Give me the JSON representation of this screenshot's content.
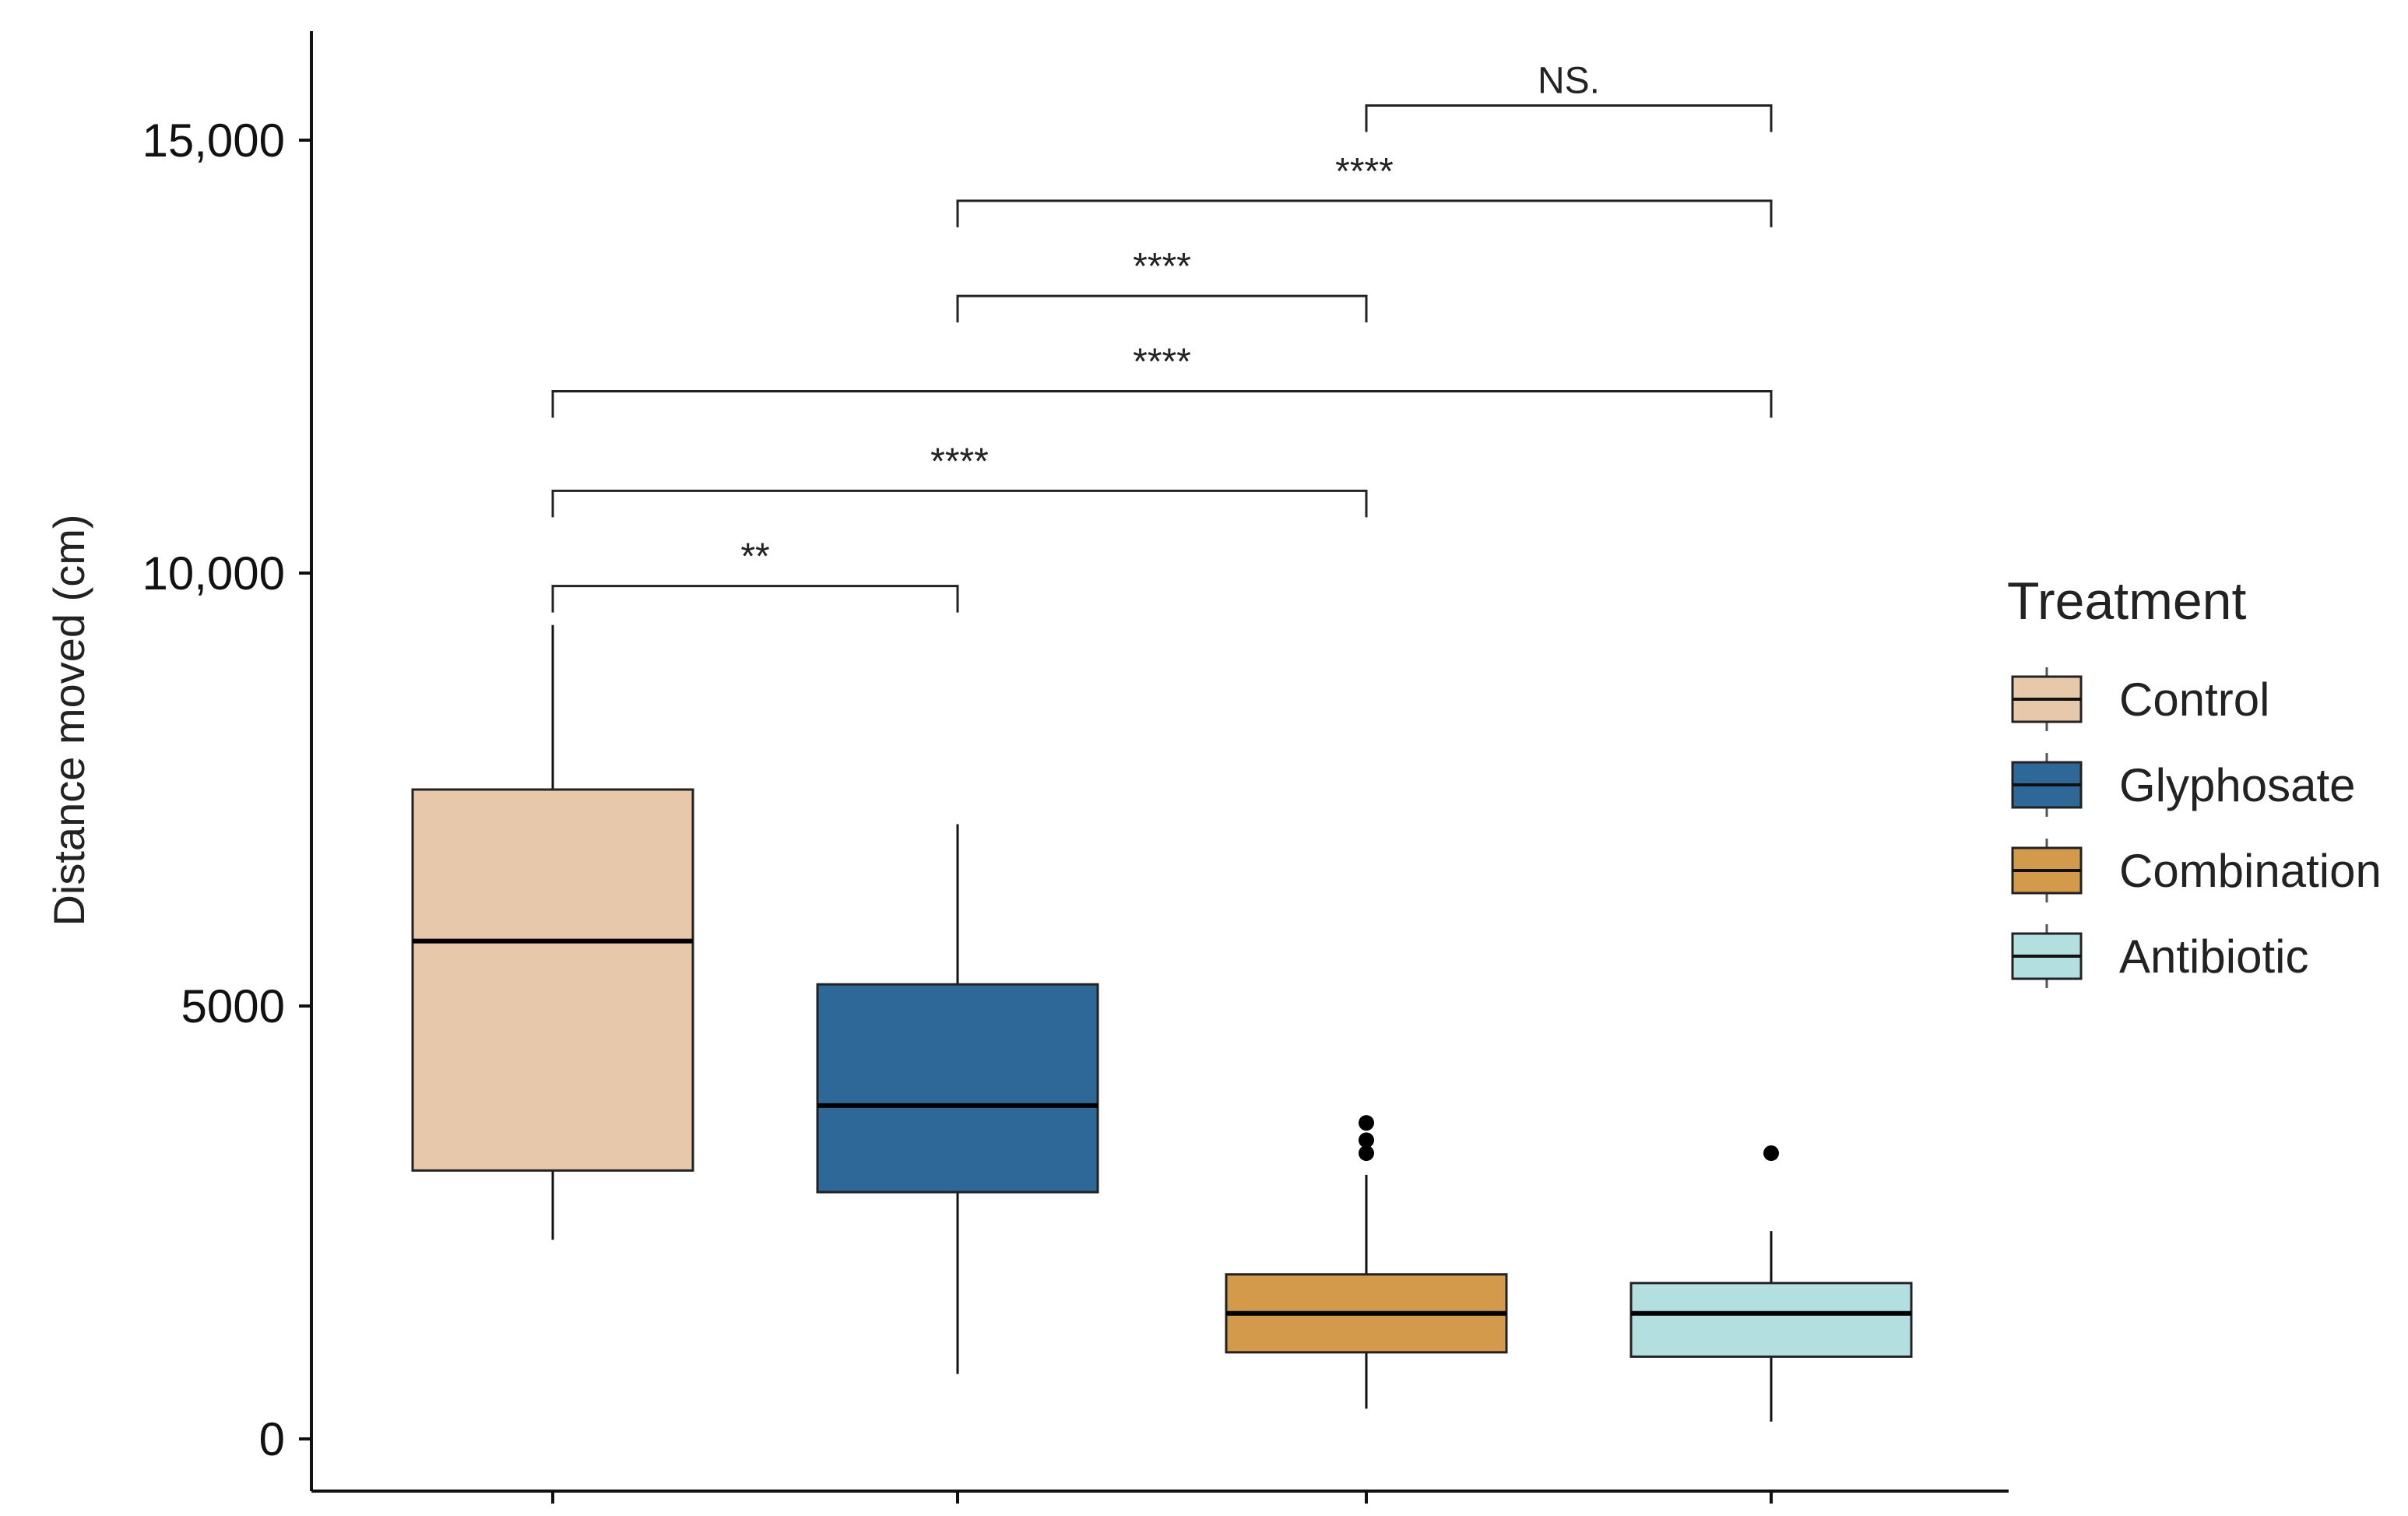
{
  "chart_data": {
    "type": "boxplot",
    "title": "",
    "xlabel": "",
    "ylabel": "Distance moved (cm)",
    "ylim": [
      -600,
      16200
    ],
    "y_ticks": [
      0,
      5000,
      10000,
      15000
    ],
    "y_tick_labels": [
      "0",
      "5000",
      "10,000",
      "15,000"
    ],
    "x_ticks_labeled": false,
    "grid": false,
    "legend": {
      "title": "Treatment",
      "placement": "right"
    },
    "groups": [
      {
        "name": "Control",
        "color": "#e8c8aa",
        "whisker_low": 2300,
        "q1": 3100,
        "median": 5750,
        "q3": 7500,
        "whisker_high": 9400,
        "outliers": []
      },
      {
        "name": "Glyphosate",
        "color": "#2d6898",
        "whisker_low": 750,
        "q1": 2850,
        "median": 3850,
        "q3": 5250,
        "whisker_high": 7100,
        "outliers": []
      },
      {
        "name": "Combination",
        "color": "#d29a4a",
        "whisker_low": 350,
        "q1": 1000,
        "median": 1450,
        "q3": 1900,
        "whisker_high": 3050,
        "outliers": [
          3300,
          3450,
          3650
        ]
      },
      {
        "name": "Antibiotic",
        "color": "#b3dfe0",
        "whisker_low": 200,
        "q1": 950,
        "median": 1450,
        "q3": 1800,
        "whisker_high": 2400,
        "outliers": [
          3300
        ]
      }
    ],
    "comparisons": [
      {
        "from": 0,
        "to": 1,
        "y": 9850,
        "label": "**"
      },
      {
        "from": 0,
        "to": 2,
        "y": 10950,
        "label": "****"
      },
      {
        "from": 0,
        "to": 3,
        "y": 12100,
        "label": "****"
      },
      {
        "from": 1,
        "to": 2,
        "y": 13200,
        "label": "****"
      },
      {
        "from": 1,
        "to": 3,
        "y": 14300,
        "label": "****"
      },
      {
        "from": 2,
        "to": 3,
        "y": 15400,
        "label": "NS."
      }
    ]
  }
}
